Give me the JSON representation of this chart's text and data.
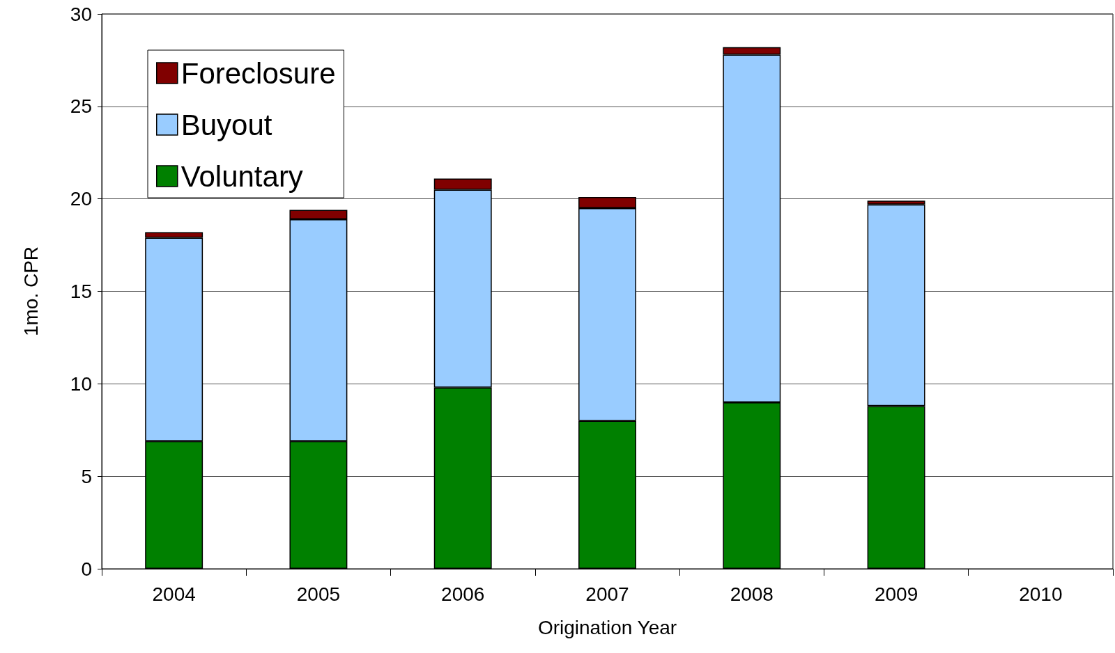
{
  "chart_data": {
    "type": "bar",
    "stacked": true,
    "xlabel": "Origination Year",
    "ylabel": "1mo. CPR",
    "categories": [
      "2004",
      "2005",
      "2006",
      "2007",
      "2008",
      "2009",
      "2010"
    ],
    "series": [
      {
        "name": "Voluntary",
        "color": "#008000",
        "values": [
          6.9,
          6.9,
          9.8,
          8.0,
          9.0,
          8.8,
          null
        ]
      },
      {
        "name": "Buyout",
        "color": "#99ccff",
        "values": [
          11.0,
          12.0,
          10.7,
          11.5,
          18.8,
          10.9,
          null
        ]
      },
      {
        "name": "Foreclosure",
        "color": "#800000",
        "values": [
          0.3,
          0.5,
          0.6,
          0.6,
          0.4,
          0.2,
          null
        ]
      }
    ],
    "ylim": [
      0,
      30
    ],
    "yticks": [
      0,
      5,
      10,
      15,
      20,
      25,
      30
    ],
    "grid": "y",
    "legend": "top left"
  }
}
